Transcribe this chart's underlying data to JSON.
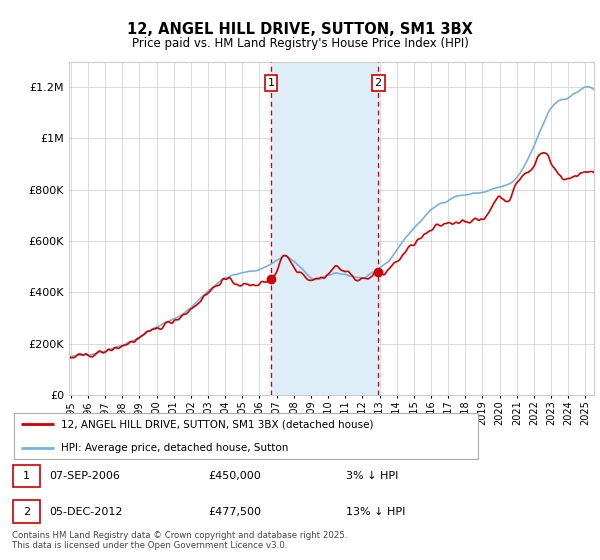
{
  "title": "12, ANGEL HILL DRIVE, SUTTON, SM1 3BX",
  "subtitle": "Price paid vs. HM Land Registry's House Price Index (HPI)",
  "ylim": [
    0,
    1300000
  ],
  "yticks": [
    0,
    200000,
    400000,
    600000,
    800000,
    1000000,
    1200000
  ],
  "ytick_labels": [
    "£0",
    "£200K",
    "£400K",
    "£600K",
    "£800K",
    "£1M",
    "£1.2M"
  ],
  "xlim_start": 1994.9,
  "xlim_end": 2025.5,
  "xticks": [
    1995,
    1996,
    1997,
    1998,
    1999,
    2000,
    2001,
    2002,
    2003,
    2004,
    2005,
    2006,
    2007,
    2008,
    2009,
    2010,
    2011,
    2012,
    2013,
    2014,
    2015,
    2016,
    2017,
    2018,
    2019,
    2020,
    2021,
    2022,
    2023,
    2024,
    2025
  ],
  "sale1_date": 2006.67,
  "sale1_price": 450000,
  "sale1_label": "1",
  "sale2_date": 2012.92,
  "sale2_price": 477500,
  "sale2_label": "2",
  "sale_color": "#cc0000",
  "hpi_color": "#7ab0d8",
  "shade_color": "#ddeef8",
  "vline_color": "#cc0000",
  "grid_color": "#cccccc",
  "background_color": "#ffffff",
  "legend_line1": "12, ANGEL HILL DRIVE, SUTTON, SM1 3BX (detached house)",
  "legend_line2": "HPI: Average price, detached house, Sutton",
  "footer": "Contains HM Land Registry data © Crown copyright and database right 2025.\nThis data is licensed under the Open Government Licence v3.0."
}
